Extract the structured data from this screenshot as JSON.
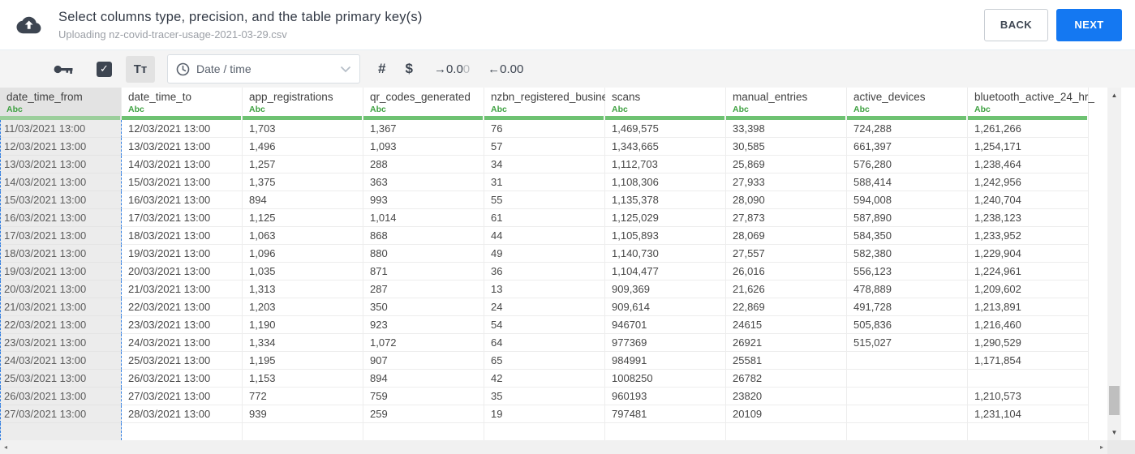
{
  "header": {
    "title": "Select columns type, precision, and the table primary key(s)",
    "subtitle": "Uploading nz-covid-tracer-usage-2021-03-29.csv",
    "back_label": "BACK",
    "next_label": "NEXT"
  },
  "toolbar": {
    "key_icon": "primary-key-icon",
    "checkbox_checked": true,
    "check_glyph": "✓",
    "text_type_label": "Tᴛ",
    "type_dropdown_value": "Date / time",
    "number_type_label": "#",
    "currency_type_label": "$",
    "precision_add_arrow": "→",
    "precision_add_value": "0.0",
    "precision_add_ghost": "0",
    "precision_remove_arrow": "←",
    "precision_remove_value": "0.00"
  },
  "table": {
    "type_badge": "Abc",
    "columns": [
      {
        "name": "date_time_from",
        "selected": true
      },
      {
        "name": "date_time_to",
        "selected": false
      },
      {
        "name": "app_registrations",
        "selected": false
      },
      {
        "name": "qr_codes_generated",
        "selected": false
      },
      {
        "name": "nzbn_registered_busine",
        "selected": false
      },
      {
        "name": "scans",
        "selected": false
      },
      {
        "name": "manual_entries",
        "selected": false
      },
      {
        "name": "active_devices",
        "selected": false
      },
      {
        "name": "bluetooth_active_24_hr_",
        "selected": false
      }
    ],
    "rows": [
      [
        "11/03/2021 13:00",
        "12/03/2021 13:00",
        "1,703",
        "1,367",
        "76",
        "1,469,575",
        "33,398",
        "724,288",
        "1,261,266"
      ],
      [
        "12/03/2021 13:00",
        "13/03/2021 13:00",
        "1,496",
        "1,093",
        "57",
        "1,343,665",
        "30,585",
        "661,397",
        "1,254,171"
      ],
      [
        "13/03/2021 13:00",
        "14/03/2021 13:00",
        "1,257",
        "288",
        "34",
        "1,112,703",
        "25,869",
        "576,280",
        "1,238,464"
      ],
      [
        "14/03/2021 13:00",
        "15/03/2021 13:00",
        "1,375",
        "363",
        "31",
        "1,108,306",
        "27,933",
        "588,414",
        "1,242,956"
      ],
      [
        "15/03/2021 13:00",
        "16/03/2021 13:00",
        "894",
        "993",
        "55",
        "1,135,378",
        "28,090",
        "594,008",
        "1,240,704"
      ],
      [
        "16/03/2021 13:00",
        "17/03/2021 13:00",
        "1,125",
        "1,014",
        "61",
        "1,125,029",
        "27,873",
        "587,890",
        "1,238,123"
      ],
      [
        "17/03/2021 13:00",
        "18/03/2021 13:00",
        "1,063",
        "868",
        "44",
        "1,105,893",
        "28,069",
        "584,350",
        "1,233,952"
      ],
      [
        "18/03/2021 13:00",
        "19/03/2021 13:00",
        "1,096",
        "880",
        "49",
        "1,140,730",
        "27,557",
        "582,380",
        "1,229,904"
      ],
      [
        "19/03/2021 13:00",
        "20/03/2021 13:00",
        "1,035",
        "871",
        "36",
        "1,104,477",
        "26,016",
        "556,123",
        "1,224,961"
      ],
      [
        "20/03/2021 13:00",
        "21/03/2021 13:00",
        "1,313",
        "287",
        "13",
        "909,369",
        "21,626",
        "478,889",
        "1,209,602"
      ],
      [
        "21/03/2021 13:00",
        "22/03/2021 13:00",
        "1,203",
        "350",
        "24",
        "909,614",
        "22,869",
        "491,728",
        "1,213,891"
      ],
      [
        "22/03/2021 13:00",
        "23/03/2021 13:00",
        "1,190",
        "923",
        "54",
        "946701",
        "24615",
        "505,836",
        "1,216,460"
      ],
      [
        "23/03/2021 13:00",
        "24/03/2021 13:00",
        "1,334",
        "1,072",
        "64",
        "977369",
        "26921",
        "515,027",
        "1,290,529"
      ],
      [
        "24/03/2021 13:00",
        "25/03/2021 13:00",
        "1,195",
        "907",
        "65",
        "984991",
        "25581",
        "",
        "1,171,854"
      ],
      [
        "25/03/2021 13:00",
        "26/03/2021 13:00",
        "1,153",
        "894",
        "42",
        "1008250",
        "26782",
        "",
        ""
      ],
      [
        "26/03/2021 13:00",
        "27/03/2021 13:00",
        "772",
        "759",
        "35",
        "960193",
        "23820",
        "",
        "1,210,573"
      ],
      [
        "27/03/2021 13:00",
        "28/03/2021 13:00",
        "939",
        "259",
        "19",
        "797481",
        "20109",
        "",
        "1,231,104"
      ]
    ]
  },
  "scrollbars": {
    "up_glyph": "▲",
    "down_glyph": "▼",
    "left_glyph": "◂",
    "right_glyph": "▸"
  },
  "colors": {
    "accent_blue": "#1478f2",
    "type_green": "#3fa142",
    "header_bar_green": "#6ec272",
    "selected_bar_green": "#9ccf9c",
    "selection_dash_blue": "#2f7de1"
  }
}
